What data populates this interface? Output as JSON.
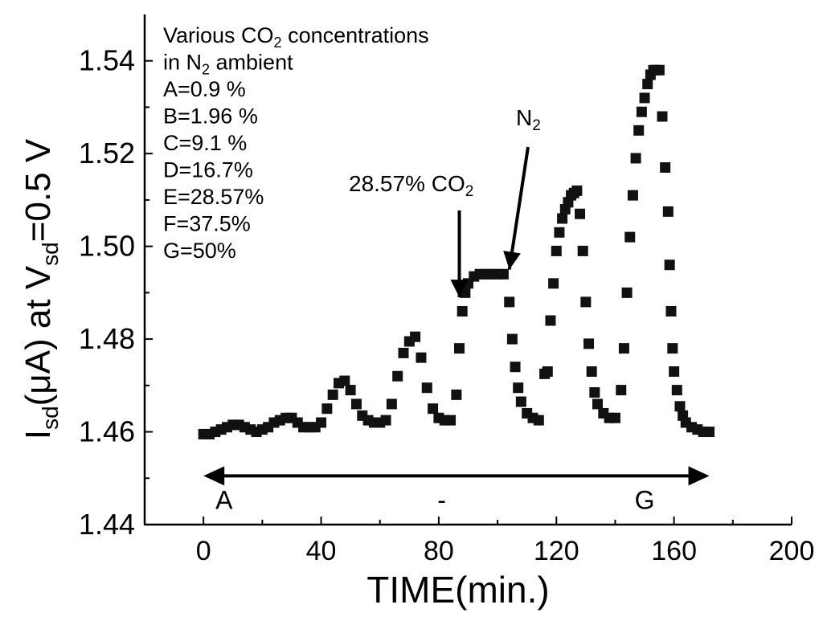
{
  "chart_data": {
    "type": "scatter",
    "title": "",
    "xlabel": "TIME(min.)",
    "ylabel": {
      "main": "I",
      "sub1": "sd",
      "mid": "(μA) at V",
      "sub2": "sd",
      "end": "=0.5 V"
    },
    "xlim": [
      -20,
      200
    ],
    "ylim": [
      1.44,
      1.55
    ],
    "xticks": [
      0,
      40,
      80,
      120,
      160,
      200
    ],
    "yticks": [
      1.44,
      1.46,
      1.48,
      1.5,
      1.52,
      1.54
    ],
    "xtick_labels": [
      "0",
      "40",
      "80",
      "120",
      "160",
      "200"
    ],
    "ytick_labels": [
      "1.44",
      "1.46",
      "1.48",
      "1.50",
      "1.52",
      "1.54"
    ],
    "grid": false,
    "legend_lines": [
      {
        "text": "Various CO",
        "sub": "2",
        "after": " concentrations"
      },
      {
        "text": "in N",
        "sub": "2",
        "after": " ambient"
      },
      {
        "text": "A=0.9 %"
      },
      {
        "text": "B=1.96 %"
      },
      {
        "text": "C=9.1 %"
      },
      {
        "text": "D=16.7%"
      },
      {
        "text": "E=28.57%"
      },
      {
        "text": "F=37.5%"
      },
      {
        "text": "G=50%"
      }
    ],
    "annotations": {
      "co2": {
        "text": "28.57% CO",
        "sub": "2",
        "arrow_to": [
          87,
          1.489
        ]
      },
      "n2": {
        "text": "N",
        "sub": "2",
        "arrow_to": [
          104,
          1.495
        ]
      },
      "span": {
        "from": 0,
        "to": 172,
        "y": 1.4505
      },
      "labels": [
        {
          "text": "A",
          "x": 7,
          "y": 1.4455
        },
        {
          "text": "-",
          "x": 81,
          "y": 1.4455
        },
        {
          "text": "G",
          "x": 150,
          "y": 1.4455
        }
      ]
    },
    "series": [
      {
        "name": "Isd",
        "points": [
          [
            0,
            1.4595
          ],
          [
            2,
            1.4595
          ],
          [
            4,
            1.46
          ],
          [
            6,
            1.4605
          ],
          [
            8,
            1.461
          ],
          [
            10,
            1.4615
          ],
          [
            12,
            1.4615
          ],
          [
            14,
            1.461
          ],
          [
            16,
            1.4605
          ],
          [
            18,
            1.46
          ],
          [
            20,
            1.4605
          ],
          [
            22,
            1.461
          ],
          [
            24,
            1.462
          ],
          [
            26,
            1.4625
          ],
          [
            28,
            1.463
          ],
          [
            30,
            1.463
          ],
          [
            32,
            1.462
          ],
          [
            34,
            1.461
          ],
          [
            36,
            1.461
          ],
          [
            38,
            1.461
          ],
          [
            40,
            1.462
          ],
          [
            42,
            1.465
          ],
          [
            44,
            1.468
          ],
          [
            46,
            1.4705
          ],
          [
            48,
            1.471
          ],
          [
            50,
            1.469
          ],
          [
            52,
            1.466
          ],
          [
            54,
            1.4635
          ],
          [
            56,
            1.4625
          ],
          [
            58,
            1.462
          ],
          [
            60,
            1.462
          ],
          [
            62,
            1.4625
          ],
          [
            64,
            1.466
          ],
          [
            66,
            1.472
          ],
          [
            68,
            1.477
          ],
          [
            70,
            1.4795
          ],
          [
            72,
            1.4805
          ],
          [
            74,
            1.476
          ],
          [
            76,
            1.4695
          ],
          [
            78,
            1.465
          ],
          [
            80,
            1.463
          ],
          [
            82,
            1.4625
          ],
          [
            84,
            1.4625
          ],
          [
            86,
            1.468
          ],
          [
            87,
            1.478
          ],
          [
            88,
            1.486
          ],
          [
            89,
            1.49
          ],
          [
            90,
            1.492
          ],
          [
            92,
            1.4935
          ],
          [
            94,
            1.494
          ],
          [
            96,
            1.494
          ],
          [
            98,
            1.494
          ],
          [
            100,
            1.494
          ],
          [
            102,
            1.494
          ],
          [
            104,
            1.488
          ],
          [
            105,
            1.48
          ],
          [
            106,
            1.474
          ],
          [
            107,
            1.4695
          ],
          [
            108,
            1.4665
          ],
          [
            110,
            1.464
          ],
          [
            112,
            1.463
          ],
          [
            114,
            1.4625
          ],
          [
            116,
            1.4725
          ],
          [
            117,
            1.473
          ],
          [
            118,
            1.484
          ],
          [
            119,
            1.492
          ],
          [
            120,
            1.499
          ],
          [
            121,
            1.503
          ],
          [
            122,
            1.506
          ],
          [
            123,
            1.508
          ],
          [
            124,
            1.5095
          ],
          [
            125,
            1.511
          ],
          [
            126,
            1.5115
          ],
          [
            127,
            1.512
          ],
          [
            128,
            1.507
          ],
          [
            129,
            1.499
          ],
          [
            130,
            1.488
          ],
          [
            131,
            1.479
          ],
          [
            132,
            1.473
          ],
          [
            133,
            1.4685
          ],
          [
            134,
            1.466
          ],
          [
            136,
            1.464
          ],
          [
            138,
            1.463
          ],
          [
            140,
            1.463
          ],
          [
            142,
            1.469
          ],
          [
            143,
            1.478
          ],
          [
            144,
            1.49
          ],
          [
            145,
            1.502
          ],
          [
            146,
            1.511
          ],
          [
            147,
            1.519
          ],
          [
            148,
            1.525
          ],
          [
            149,
            1.529
          ],
          [
            150,
            1.532
          ],
          [
            151,
            1.535
          ],
          [
            152,
            1.537
          ],
          [
            153,
            1.538
          ],
          [
            154,
            1.538
          ],
          [
            155,
            1.538
          ],
          [
            156,
            1.528
          ],
          [
            157,
            1.517
          ],
          [
            158,
            1.5075
          ],
          [
            158.5,
            1.496
          ],
          [
            159,
            1.486
          ],
          [
            159.5,
            1.478
          ],
          [
            160,
            1.473
          ],
          [
            161,
            1.469
          ],
          [
            162,
            1.4655
          ],
          [
            163,
            1.4635
          ],
          [
            164,
            1.462
          ],
          [
            166,
            1.461
          ],
          [
            168,
            1.4605
          ],
          [
            170,
            1.46
          ],
          [
            172,
            1.46
          ]
        ]
      }
    ]
  }
}
